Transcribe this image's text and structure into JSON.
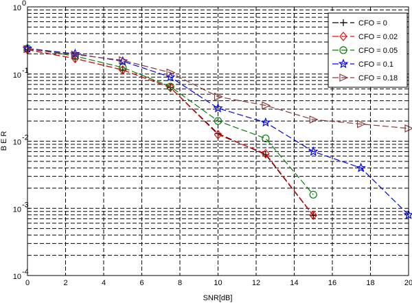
{
  "chart_data": {
    "type": "line",
    "xlabel": "SNR[dB]",
    "ylabel": "B E R",
    "yscale": "log",
    "xlim": [
      0,
      20
    ],
    "ylim": [
      0.0001,
      1
    ],
    "xticks": [
      0,
      2,
      4,
      6,
      8,
      10,
      12,
      14,
      16,
      18,
      20
    ],
    "yticks": [
      {
        "value": 0.0001,
        "base": "10",
        "exp": "-4"
      },
      {
        "value": 0.001,
        "base": "10",
        "exp": "-3"
      },
      {
        "value": 0.01,
        "base": "10",
        "exp": "-2"
      },
      {
        "value": 0.1,
        "base": "10",
        "exp": "-1"
      },
      {
        "value": 1,
        "base": "10",
        "exp": "0"
      }
    ],
    "grid": true,
    "legend_position": "top-right",
    "series": [
      {
        "name": "CFO = 0",
        "color": "#000000",
        "marker": "plus",
        "x": [
          0,
          2.5,
          5,
          7.5,
          10,
          12.5,
          15
        ],
        "y": [
          0.23,
          0.17,
          0.115,
          0.063,
          0.013,
          0.0063,
          0.00078
        ]
      },
      {
        "name": "CFO = 0.02",
        "color": "#ff0000",
        "marker": "diamond",
        "x": [
          0,
          2.5,
          5,
          7.5,
          10,
          12.5,
          15
        ],
        "y": [
          0.23,
          0.17,
          0.115,
          0.063,
          0.0125,
          0.0065,
          0.00079
        ]
      },
      {
        "name": "CFO = 0.05",
        "color": "#008000",
        "marker": "circle",
        "x": [
          0,
          2.5,
          5,
          7.5,
          10,
          12.5,
          15
        ],
        "y": [
          0.24,
          0.185,
          0.125,
          0.065,
          0.02,
          0.011,
          0.0016
        ]
      },
      {
        "name": "CFO = 0.1",
        "color": "#0000ff",
        "marker": "star",
        "x": [
          0,
          2.5,
          5,
          7.5,
          10,
          12.5,
          15,
          17.5,
          20
        ],
        "y": [
          0.24,
          0.2,
          0.155,
          0.09,
          0.031,
          0.019,
          0.007,
          0.004,
          0.0008
        ]
      },
      {
        "name": "CFO = 0.18",
        "color": "#8b3a3a",
        "marker": "triangle-right",
        "x": [
          0,
          2.5,
          5,
          7.5,
          10,
          12.5,
          15,
          17.5,
          20
        ],
        "y": [
          0.235,
          0.195,
          0.16,
          0.105,
          0.046,
          0.034,
          0.021,
          0.018,
          0.0155
        ]
      }
    ]
  }
}
